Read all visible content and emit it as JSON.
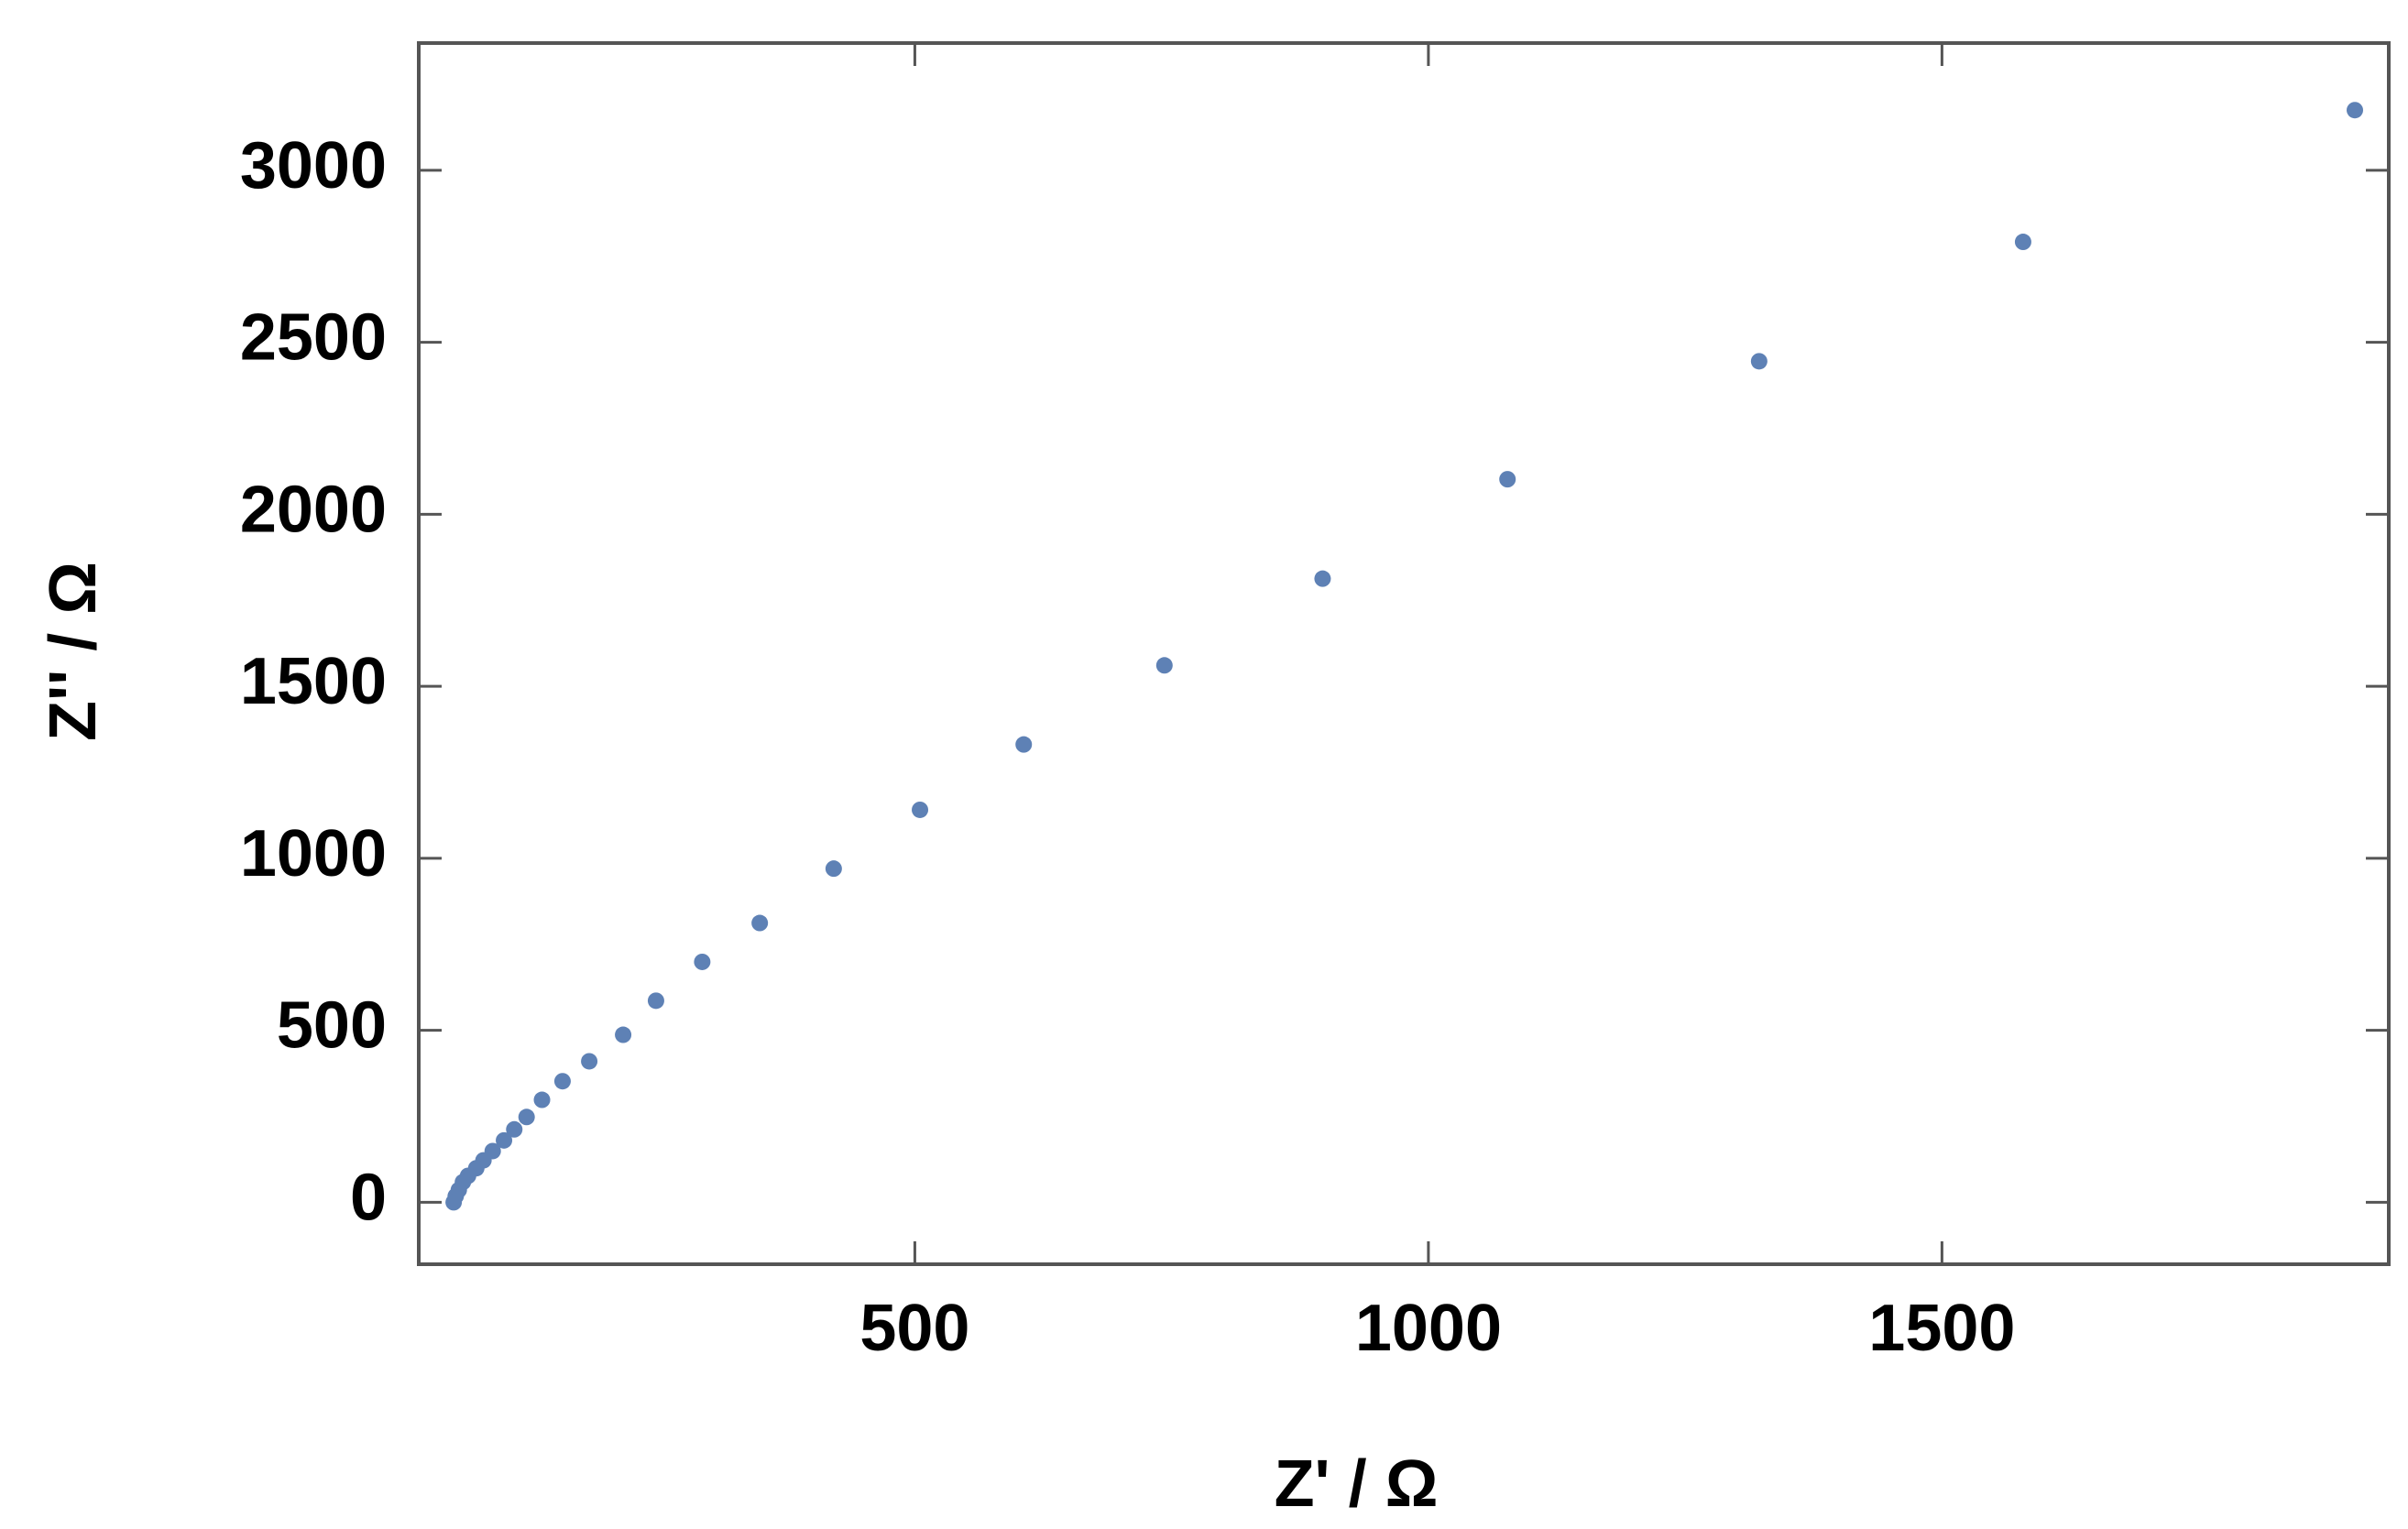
{
  "chart_data": {
    "type": "scatter",
    "x_label": "Z' / Ω",
    "y_label": "Z'' / Ω",
    "color": "#5e81b5",
    "x": [
      1902,
      1579,
      1322,
      1077,
      897,
      743,
      606,
      505,
      421,
      349,
      293,
      248,
      216,
      183,
      157,
      137,
      122,
      110,
      100,
      89,
      80,
      73,
      65,
      60,
      56,
      53,
      51
    ],
    "values": [
      3175,
      2792,
      2445,
      2102,
      1813,
      1561,
      1331,
      1141,
      970,
      812,
      699,
      586,
      487,
      410,
      352,
      298,
      248,
      212,
      180,
      149,
      122,
      99,
      77,
      59,
      36,
      18,
      0
    ],
    "xlim": [
      17,
      1935
    ],
    "ylim": [
      -180,
      3370
    ],
    "xticks": [
      500,
      1000,
      1500
    ],
    "yticks": [
      0,
      500,
      1000,
      1500,
      2000,
      2500,
      3000
    ]
  }
}
